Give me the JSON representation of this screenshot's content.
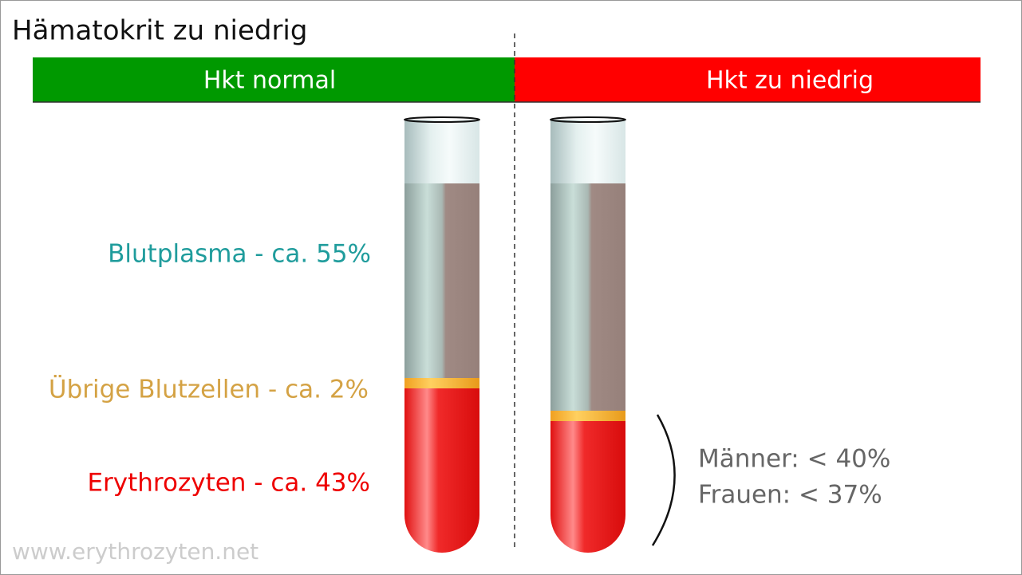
{
  "title": "Hämatokrit zu niedrig",
  "headers": [
    "Hkt normal",
    "Hkt zu niedrig"
  ],
  "labels": [
    "Blutplasma - ca. 55%",
    "Übrige Blutzellen - ca. 2%",
    "Erythrozyten - ca. 43%"
  ],
  "thresholds": [
    "Männer: < 40%",
    "Frauen: < 37%"
  ],
  "footer": "www.erythrozyten.net"
}
